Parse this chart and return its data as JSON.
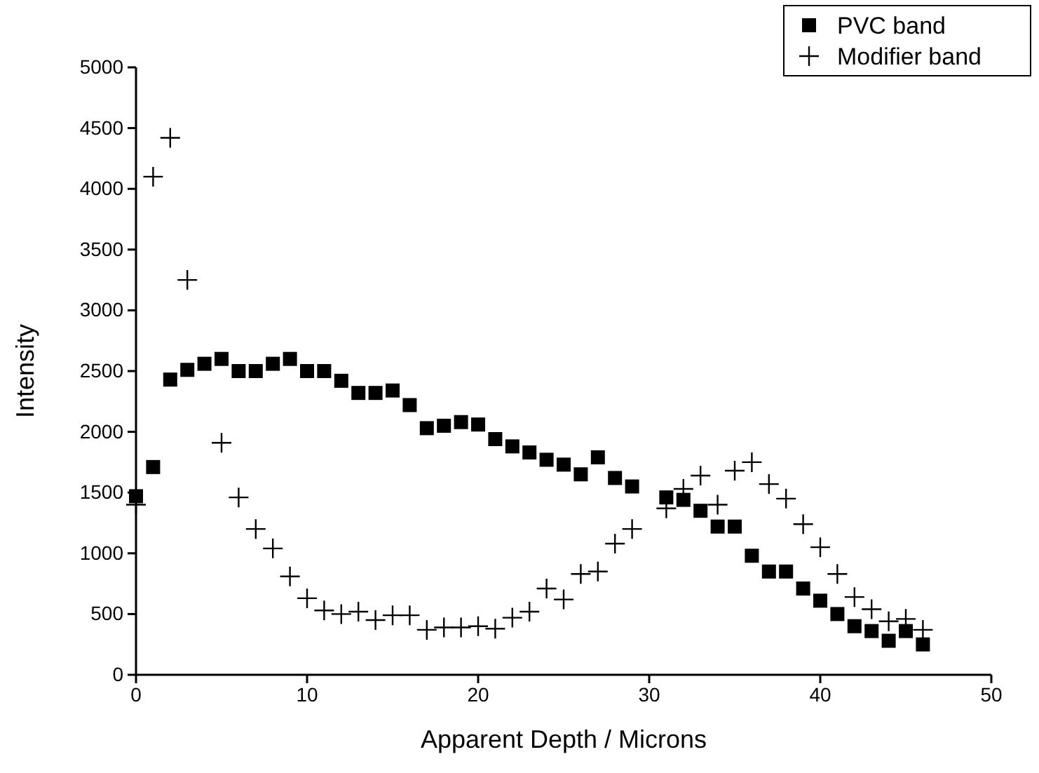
{
  "chart_data": {
    "type": "scatter",
    "xlabel": "Apparent Depth / Microns",
    "ylabel": "Intensity",
    "xlim": [
      0,
      50
    ],
    "xticks": [
      0,
      10,
      20,
      30,
      40,
      50
    ],
    "ylim": [
      0,
      5000
    ],
    "yticks": [
      0,
      500,
      1000,
      1500,
      2000,
      2500,
      3000,
      3500,
      4000,
      4500,
      5000
    ],
    "legend": "top right",
    "grid": false,
    "series": [
      {
        "name": "PVC band",
        "color": "#000000",
        "marker": "square",
        "x": [
          0,
          1,
          2,
          3,
          4,
          5,
          6,
          7,
          8,
          9,
          10,
          11,
          12,
          13,
          14,
          15,
          16,
          17,
          18,
          19,
          20,
          21,
          22,
          23,
          24,
          25,
          26,
          27,
          28,
          29,
          31,
          32,
          33,
          34,
          35,
          36,
          37,
          38,
          39,
          40,
          41,
          42,
          43,
          44,
          45,
          46
        ],
        "values": [
          1470,
          1710,
          2430,
          2510,
          2560,
          2600,
          2500,
          2500,
          2560,
          2600,
          2500,
          2500,
          2420,
          2320,
          2320,
          2340,
          2220,
          2030,
          2050,
          2080,
          2060,
          1940,
          1880,
          1830,
          1770,
          1730,
          1650,
          1790,
          1620,
          1550,
          1460,
          1440,
          1350,
          1220,
          1220,
          980,
          850,
          850,
          710,
          610,
          500,
          400,
          360,
          280,
          360,
          250
        ]
      },
      {
        "name": "Modifier band",
        "color": "#000000",
        "marker": "cross",
        "x": [
          0,
          1,
          2,
          3,
          5,
          6,
          7,
          8,
          9,
          10,
          11,
          12,
          13,
          14,
          15,
          16,
          17,
          18,
          19,
          20,
          21,
          22,
          23,
          24,
          25,
          26,
          27,
          28,
          29,
          31,
          32,
          33,
          34,
          35,
          36,
          37,
          38,
          39,
          40,
          41,
          42,
          43,
          44,
          45,
          46
        ],
        "values": [
          1400,
          4100,
          4420,
          3250,
          1910,
          1460,
          1200,
          1040,
          810,
          630,
          530,
          500,
          520,
          450,
          490,
          490,
          370,
          390,
          390,
          400,
          380,
          470,
          520,
          710,
          620,
          830,
          850,
          1080,
          1200,
          1370,
          1530,
          1640,
          1400,
          1680,
          1750,
          1570,
          1450,
          1240,
          1050,
          830,
          640,
          540,
          440,
          460,
          370
        ]
      }
    ]
  }
}
